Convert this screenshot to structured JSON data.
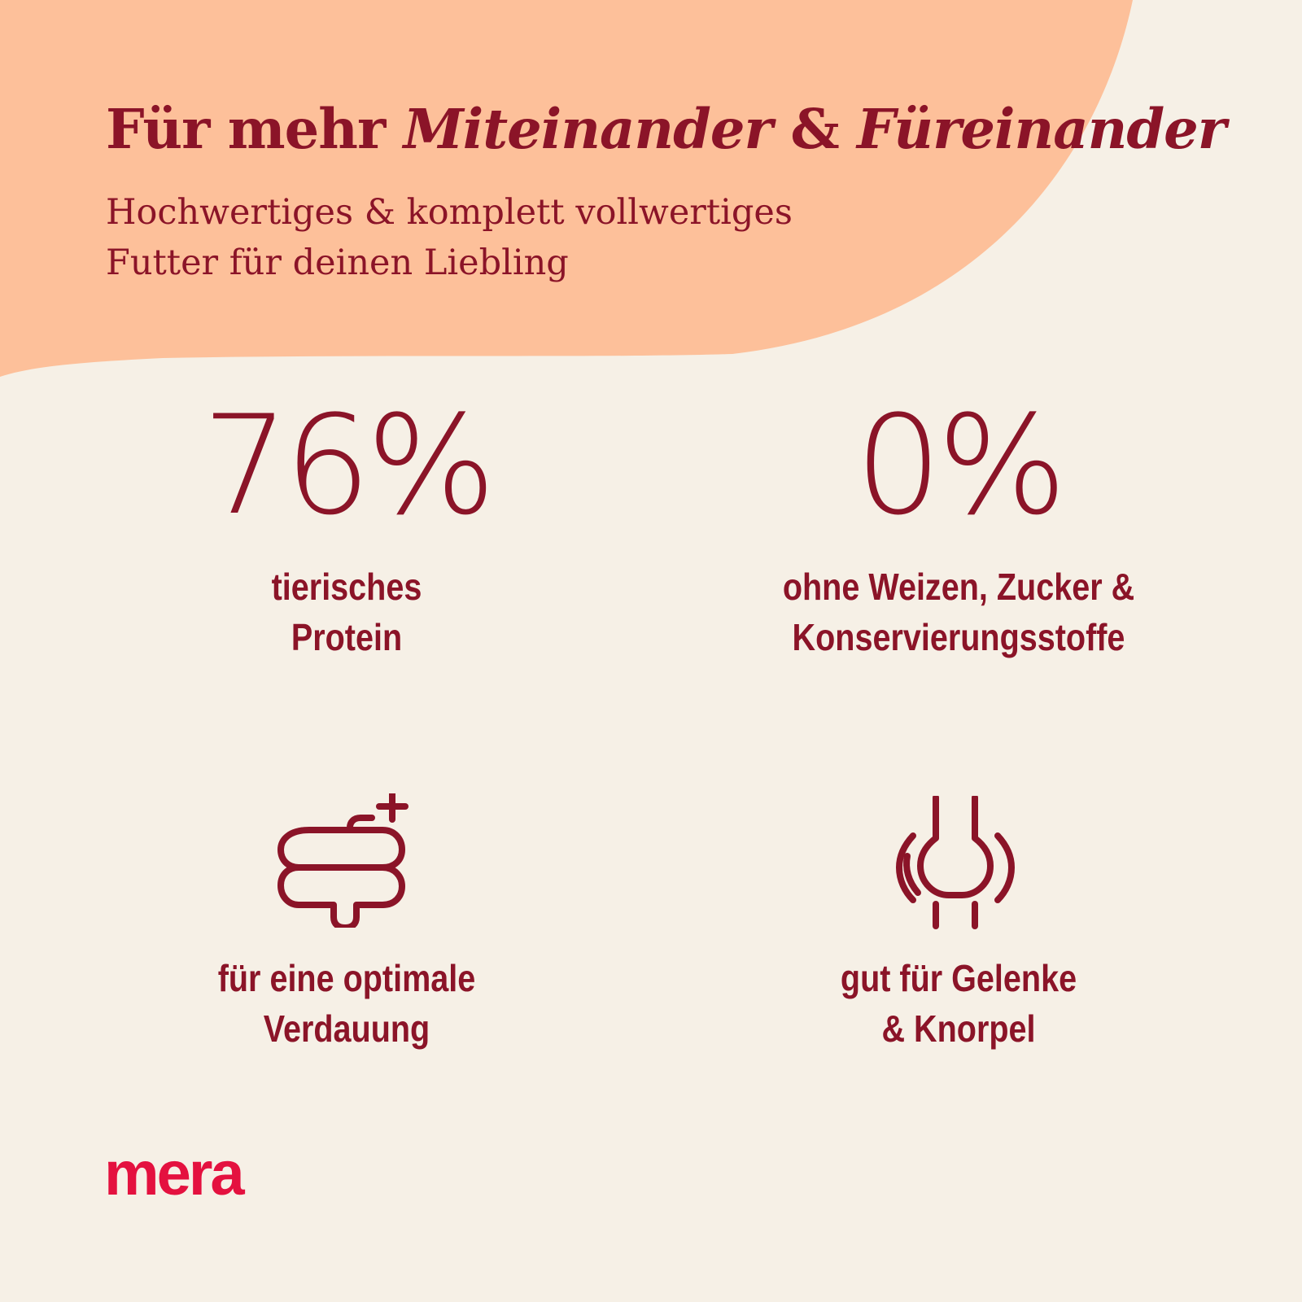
{
  "headline": {
    "regular": "Für mehr",
    "emphasis_1": "Miteinander",
    "connector": "&",
    "emphasis_2": "Füreinander"
  },
  "subheadline": {
    "line1": "Hochwertiges & komplett vollwertiges",
    "line2": "Futter für deinen Liebling"
  },
  "features": [
    {
      "value": "76%",
      "line1": "tierisches",
      "line2": "Protein"
    },
    {
      "value": "0%",
      "line1": "ohne Weizen, Zucker &",
      "line2": "Konservierungsstoffe"
    },
    {
      "icon": "intestine-plus-icon",
      "line1": "für eine optimale",
      "line2": "Verdauung"
    },
    {
      "icon": "joint-icon",
      "line1": "gut für Gelenke",
      "line2": "& Knorpel"
    }
  ],
  "brand": {
    "logo_text": "mera"
  },
  "colors": {
    "background": "#F6F0E6",
    "blob": "#FDC09A",
    "text": "#8B1428",
    "logo": "#E4113F"
  }
}
